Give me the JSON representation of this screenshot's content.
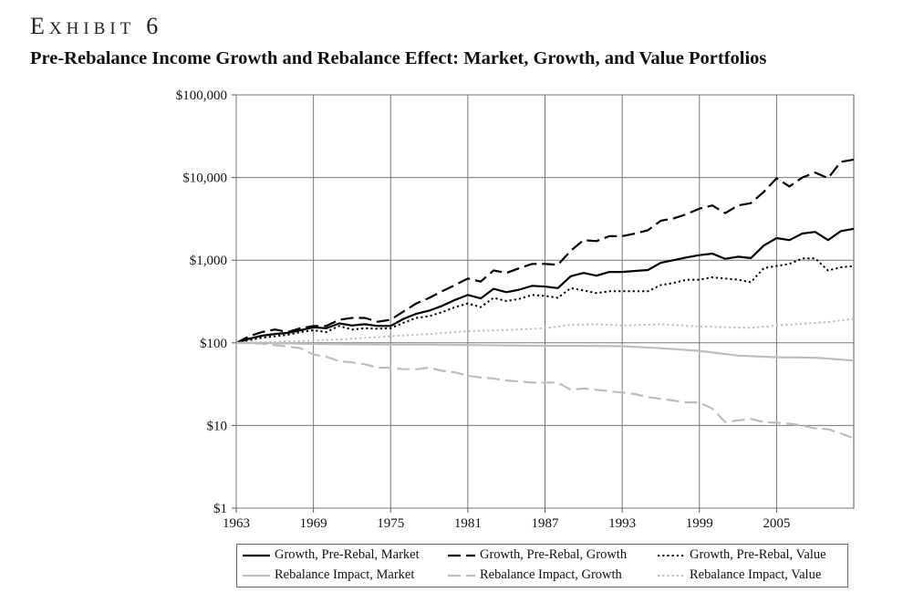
{
  "exhibit": {
    "first": "E",
    "rest": "XHIBIT",
    "number": "6"
  },
  "subtitle": "Pre-Rebalance Income Growth and Rebalance Effect: Market, Growth, and Value Portfolios",
  "chart_data": {
    "type": "line",
    "y_scale": "log",
    "ylim": [
      1,
      100000
    ],
    "xlim": [
      1963,
      2011
    ],
    "y_ticks": [
      {
        "value": 100000,
        "label": "$100,000"
      },
      {
        "value": 10000,
        "label": "$10,000"
      },
      {
        "value": 1000,
        "label": "$1,000"
      },
      {
        "value": 100,
        "label": "$100"
      },
      {
        "value": 10,
        "label": "$10"
      },
      {
        "value": 1,
        "label": "$1"
      }
    ],
    "x_ticks": [
      {
        "value": 1963,
        "label": "1963"
      },
      {
        "value": 1969,
        "label": "1969"
      },
      {
        "value": 1975,
        "label": "1975"
      },
      {
        "value": 1981,
        "label": "1981"
      },
      {
        "value": 1987,
        "label": "1987"
      },
      {
        "value": 1993,
        "label": "1993"
      },
      {
        "value": 1999,
        "label": "1999"
      },
      {
        "value": 2005,
        "label": "2005"
      }
    ],
    "grid": true,
    "series": [
      {
        "name": "Growth, Pre-Rebal, Market",
        "color": "#000000",
        "dash": "solid",
        "width": 2.2,
        "x": [
          1963,
          1964,
          1965,
          1966,
          1967,
          1968,
          1969,
          1970,
          1971,
          1972,
          1973,
          1974,
          1975,
          1976,
          1977,
          1978,
          1979,
          1980,
          1981,
          1982,
          1983,
          1984,
          1985,
          1986,
          1987,
          1988,
          1989,
          1990,
          1991,
          1992,
          1993,
          1994,
          1995,
          1996,
          1997,
          1998,
          1999,
          2000,
          2001,
          2002,
          2003,
          2004,
          2005,
          2006,
          2007,
          2008,
          2009,
          2010,
          2011
        ],
        "values": [
          100,
          112,
          122,
          128,
          132,
          142,
          154,
          150,
          172,
          162,
          168,
          160,
          160,
          195,
          225,
          245,
          280,
          330,
          380,
          345,
          450,
          410,
          440,
          490,
          480,
          460,
          640,
          700,
          650,
          720,
          720,
          740,
          760,
          930,
          1000,
          1080,
          1150,
          1200,
          1040,
          1100,
          1060,
          1500,
          1850,
          1750,
          2100,
          2200,
          1750,
          2250,
          2400
        ]
      },
      {
        "name": "Growth, Pre-Rebal, Growth",
        "color": "#000000",
        "dash": "long",
        "width": 2.2,
        "x": [
          1963,
          1964,
          1965,
          1966,
          1967,
          1968,
          1969,
          1970,
          1971,
          1972,
          1973,
          1974,
          1975,
          1976,
          1977,
          1978,
          1979,
          1980,
          1981,
          1982,
          1983,
          1984,
          1985,
          1986,
          1987,
          1988,
          1989,
          1990,
          1991,
          1992,
          1993,
          1994,
          1995,
          1996,
          1997,
          1998,
          1999,
          2000,
          2001,
          2002,
          2003,
          2004,
          2005,
          2006,
          2007,
          2008,
          2009,
          2010,
          2011
        ],
        "values": [
          100,
          120,
          135,
          145,
          135,
          150,
          160,
          160,
          190,
          200,
          200,
          180,
          190,
          240,
          300,
          350,
          420,
          500,
          600,
          550,
          750,
          700,
          800,
          900,
          900,
          880,
          1300,
          1750,
          1700,
          1950,
          1950,
          2100,
          2300,
          3000,
          3200,
          3600,
          4200,
          4600,
          3700,
          4600,
          4900,
          6700,
          9800,
          7800,
          10000,
          11500,
          9800,
          15500,
          16500
        ]
      },
      {
        "name": "Growth, Pre-Rebal, Value",
        "color": "#000000",
        "dash": "dot",
        "width": 2.0,
        "x": [
          1963,
          1964,
          1965,
          1966,
          1967,
          1968,
          1969,
          1970,
          1971,
          1972,
          1973,
          1974,
          1975,
          1976,
          1977,
          1978,
          1979,
          1980,
          1981,
          1982,
          1983,
          1984,
          1985,
          1986,
          1987,
          1988,
          1989,
          1990,
          1991,
          1992,
          1993,
          1994,
          1995,
          1996,
          1997,
          1998,
          1999,
          2000,
          2001,
          2002,
          2003,
          2004,
          2005,
          2006,
          2007,
          2008,
          2009,
          2010,
          2011
        ],
        "values": [
          100,
          108,
          115,
          120,
          125,
          135,
          142,
          135,
          160,
          145,
          150,
          148,
          150,
          175,
          200,
          210,
          235,
          270,
          300,
          270,
          350,
          320,
          340,
          380,
          370,
          350,
          460,
          430,
          400,
          420,
          420,
          420,
          420,
          500,
          530,
          580,
          580,
          620,
          600,
          580,
          540,
          800,
          850,
          900,
          1050,
          1050,
          750,
          820,
          850
        ]
      },
      {
        "name": "Rebalance Impact, Market",
        "color": "#bdbdbd",
        "dash": "solid",
        "width": 2.2,
        "x": [
          1963,
          1966,
          1969,
          1972,
          1975,
          1978,
          1981,
          1984,
          1987,
          1990,
          1993,
          1996,
          1999,
          2002,
          2005,
          2008,
          2011
        ],
        "values": [
          100,
          99,
          97,
          96,
          95,
          95,
          94,
          93,
          92,
          92,
          91,
          86,
          80,
          70,
          67,
          66,
          61
        ]
      },
      {
        "name": "Rebalance Impact, Growth",
        "color": "#bdbdbd",
        "dash": "long",
        "width": 2.2,
        "x": [
          1963,
          1965,
          1967,
          1968,
          1969,
          1970,
          1971,
          1972,
          1973,
          1974,
          1975,
          1976,
          1977,
          1978,
          1979,
          1980,
          1981,
          1982,
          1983,
          1984,
          1985,
          1986,
          1987,
          1988,
          1989,
          1990,
          1991,
          1992,
          1993,
          1994,
          1995,
          1996,
          1997,
          1998,
          1999,
          2000,
          2001,
          2002,
          2003,
          2004,
          2005,
          2006,
          2007,
          2008,
          2009,
          2010,
          2011
        ],
        "values": [
          100,
          98,
          90,
          86,
          72,
          68,
          60,
          58,
          55,
          50,
          50,
          48,
          48,
          50,
          46,
          44,
          40,
          38,
          37,
          35,
          34,
          33,
          33,
          33,
          27,
          28,
          27,
          26,
          25,
          24,
          22,
          21,
          20,
          19,
          19,
          16,
          11,
          11.5,
          12,
          11,
          10.8,
          10.5,
          10,
          9.2,
          9,
          8,
          7
        ]
      },
      {
        "name": "Rebalance Impact, Value",
        "color": "#bdbdbd",
        "dash": "dot",
        "width": 2.0,
        "x": [
          1963,
          1966,
          1969,
          1972,
          1975,
          1978,
          1981,
          1984,
          1987,
          1989,
          1991,
          1993,
          1996,
          1999,
          2001,
          2003,
          2005,
          2007,
          2009,
          2011
        ],
        "values": [
          100,
          103,
          106,
          112,
          120,
          128,
          138,
          143,
          150,
          165,
          168,
          162,
          168,
          158,
          155,
          152,
          162,
          170,
          178,
          195
        ]
      }
    ]
  }
}
